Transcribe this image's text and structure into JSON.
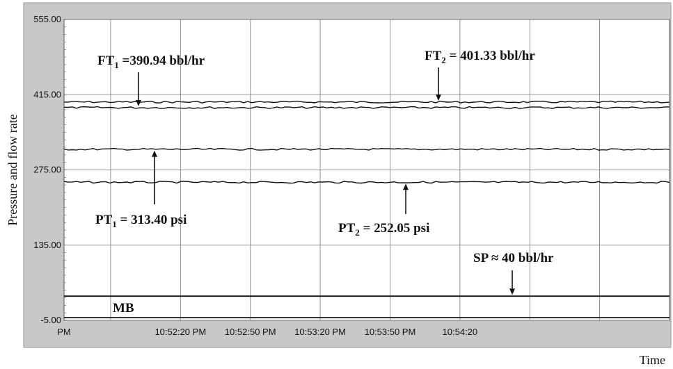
{
  "chart_data": {
    "type": "line",
    "title": "",
    "xlabel": "Time",
    "ylabel": "Pressure  and  flow rate",
    "ylim": [
      -5.0,
      555.0
    ],
    "yticks": [
      "555.00",
      "415.00",
      "275.00",
      "135.00",
      "-5.00"
    ],
    "ytick_values": [
      555.0,
      415.0,
      275.0,
      135.0,
      -5.0
    ],
    "xlim": [
      0,
      260
    ],
    "xtick_labels": [
      "PM",
      "10:52:20 PM",
      "10:52:50 PM",
      "10:53:20 PM",
      "10:53:50 PM",
      "10:54:20"
    ],
    "xtick_values": [
      0,
      50,
      80,
      110,
      140,
      170
    ],
    "grid": true,
    "series": [
      {
        "name": "FT2",
        "level": 401.33
      },
      {
        "name": "FT1",
        "level": 390.94
      },
      {
        "name": "PT1",
        "level": 313.4
      },
      {
        "name": "PT2",
        "level": 252.05
      },
      {
        "name": "SP",
        "level": 40.0
      },
      {
        "name": "MB",
        "level": 0.0
      }
    ],
    "annotations": [
      {
        "main": "FT",
        "sub": "1",
        "rest": " =390.94 bbl/hr",
        "target": "FT1",
        "direction": "down"
      },
      {
        "main": "FT",
        "sub": "2",
        "rest": " = 401.33 bbl/hr",
        "target": "FT2",
        "direction": "down"
      },
      {
        "main": "PT",
        "sub": "1",
        "rest": " = 313.40 psi",
        "target": "PT1",
        "direction": "up"
      },
      {
        "main": "PT",
        "sub": "2",
        "rest": " = 252.05 psi",
        "target": "PT2",
        "direction": "up"
      },
      {
        "main": "SP ≈ 40 bbl/hr",
        "sub": "",
        "rest": "",
        "target": "SP",
        "direction": "down"
      },
      {
        "main": "MB",
        "sub": "",
        "rest": "",
        "target": "MB",
        "direction": "none"
      }
    ]
  }
}
